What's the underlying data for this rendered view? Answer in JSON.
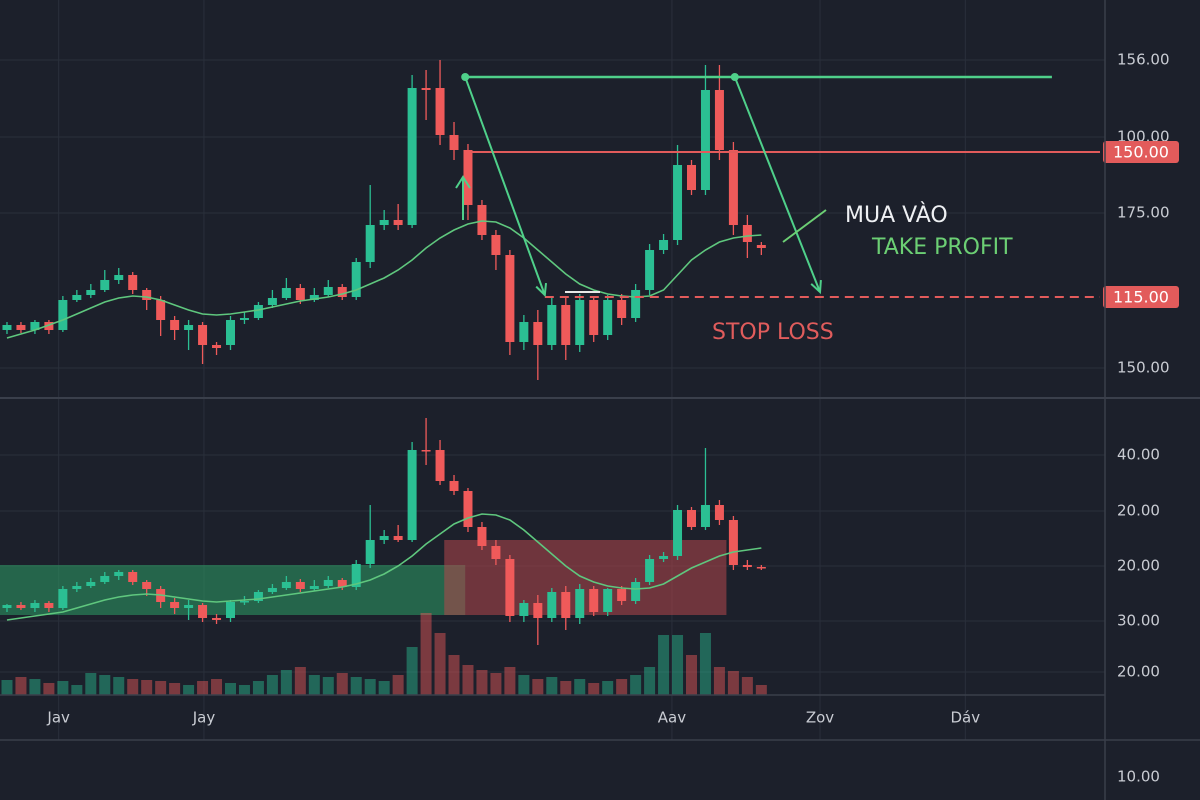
{
  "chart_data": [
    {
      "type": "candlestick",
      "xlim": [
        -0.5,
        78.6
      ],
      "ylim": [
        5,
        380
      ],
      "xticks": [
        {
          "value": 3.7,
          "label": "Jav"
        },
        {
          "value": 14.1,
          "label": "Jay"
        },
        {
          "value": 47.6,
          "label": "Aav"
        },
        {
          "value": 58.2,
          "label": "Zov"
        },
        {
          "value": 68.6,
          "label": "Dáv"
        }
      ],
      "y_labels": [
        "156.00",
        "100.00",
        "175.00",
        "150.00"
      ],
      "up_color": "#2bbf93",
      "down_color": "#ef5a5a",
      "ma_color": "#5fc77e",
      "candles": [
        [
          70,
          78,
          66,
          75
        ],
        [
          75,
          78,
          67,
          70
        ],
        [
          70,
          80,
          66,
          78
        ],
        [
          78,
          80,
          66,
          70
        ],
        [
          70,
          104,
          68,
          100
        ],
        [
          100,
          110,
          98,
          105
        ],
        [
          105,
          116,
          102,
          110
        ],
        [
          110,
          130,
          108,
          120
        ],
        [
          120,
          132,
          116,
          125
        ],
        [
          125,
          128,
          106,
          110
        ],
        [
          110,
          112,
          90,
          100
        ],
        [
          100,
          104,
          64,
          80
        ],
        [
          80,
          84,
          60,
          70
        ],
        [
          70,
          80,
          50,
          75
        ],
        [
          75,
          78,
          36,
          55
        ],
        [
          55,
          58,
          45,
          52
        ],
        [
          55,
          84,
          50,
          80
        ],
        [
          80,
          88,
          76,
          82
        ],
        [
          82,
          98,
          80,
          95
        ],
        [
          95,
          110,
          92,
          102
        ],
        [
          102,
          122,
          100,
          112
        ],
        [
          112,
          116,
          96,
          100
        ],
        [
          100,
          112,
          98,
          105
        ],
        [
          105,
          120,
          103,
          113
        ],
        [
          113,
          116,
          100,
          103
        ],
        [
          103,
          142,
          100,
          138
        ],
        [
          138,
          215,
          132,
          175
        ],
        [
          175,
          190,
          170,
          180
        ],
        [
          180,
          196,
          170,
          175
        ],
        [
          175,
          325,
          172,
          312
        ],
        [
          312,
          330,
          280,
          310
        ],
        [
          312,
          340,
          255,
          265
        ],
        [
          265,
          278,
          240,
          250
        ],
        [
          250,
          256,
          180,
          195
        ],
        [
          195,
          200,
          160,
          165
        ],
        [
          165,
          170,
          130,
          145
        ],
        [
          145,
          150,
          45,
          58
        ],
        [
          58,
          85,
          50,
          78
        ],
        [
          78,
          90,
          20,
          55
        ],
        [
          55,
          102,
          50,
          95
        ],
        [
          95,
          104,
          40,
          55
        ],
        [
          55,
          106,
          48,
          100
        ],
        [
          100,
          104,
          58,
          65
        ],
        [
          65,
          105,
          60,
          100
        ],
        [
          100,
          106,
          75,
          82
        ],
        [
          82,
          116,
          78,
          110
        ],
        [
          110,
          156,
          105,
          150
        ],
        [
          150,
          166,
          146,
          160
        ],
        [
          160,
          255,
          155,
          235
        ],
        [
          235,
          240,
          205,
          210
        ],
        [
          210,
          335,
          205,
          310
        ],
        [
          310,
          335,
          240,
          250
        ],
        [
          250,
          258,
          165,
          175
        ],
        [
          175,
          185,
          142,
          158
        ],
        [
          155,
          158,
          145,
          152
        ]
      ],
      "ma": [
        62,
        66,
        70,
        75,
        80,
        86,
        92,
        98,
        102,
        104,
        103,
        100,
        95,
        90,
        86,
        85,
        86,
        88,
        90,
        93,
        96,
        99,
        101,
        103,
        106,
        110,
        116,
        122,
        130,
        140,
        152,
        162,
        170,
        176,
        179,
        178,
        172,
        162,
        150,
        138,
        126,
        116,
        110,
        106,
        104,
        103,
        104,
        110,
        125,
        140,
        150,
        158,
        162,
        164,
        165
      ],
      "levels": [
        {
          "tag": "150.00",
          "value": 248,
          "from": 33.2,
          "color": "#e25b5b",
          "dashed": false
        },
        {
          "tag": "115.00",
          "value": 103,
          "from": 38.5,
          "color": "#e25b5b",
          "dashed": true
        }
      ],
      "top_line": {
        "value": 323,
        "from": 32.8,
        "to": 74.8,
        "color": "#4fd08a"
      },
      "arrows": [
        [
          32.8,
          323,
          38.5,
          105
        ],
        [
          52.1,
          323,
          58.2,
          108
        ]
      ],
      "annotations": [
        "MUA VÀO",
        "TAKE PROFIT",
        "STOP LOSS"
      ]
    },
    {
      "type": "candlestick",
      "ylim": [
        5,
        300
      ],
      "y_labels": [
        "40.00",
        "20.00",
        "20.00",
        "30.00",
        "20.00"
      ],
      "candles": [
        [
          92,
          96,
          88,
          95
        ],
        [
          95,
          98,
          90,
          92
        ],
        [
          92,
          100,
          88,
          97
        ],
        [
          97,
          99,
          88,
          92
        ],
        [
          92,
          114,
          90,
          111
        ],
        [
          111,
          118,
          108,
          114
        ],
        [
          114,
          122,
          112,
          118
        ],
        [
          118,
          128,
          116,
          124
        ],
        [
          124,
          130,
          120,
          128
        ],
        [
          128,
          130,
          115,
          118
        ],
        [
          118,
          120,
          104,
          111
        ],
        [
          111,
          114,
          92,
          98
        ],
        [
          98,
          102,
          86,
          92
        ],
        [
          92,
          100,
          80,
          95
        ],
        [
          95,
          97,
          78,
          82
        ],
        [
          82,
          86,
          76,
          80
        ],
        [
          82,
          100,
          78,
          98
        ],
        [
          98,
          104,
          95,
          99
        ],
        [
          99,
          110,
          97,
          108
        ],
        [
          108,
          116,
          106,
          112
        ],
        [
          112,
          124,
          110,
          118
        ],
        [
          118,
          121,
          108,
          111
        ],
        [
          111,
          120,
          109,
          114
        ],
        [
          114,
          124,
          112,
          120
        ],
        [
          120,
          122,
          110,
          113
        ],
        [
          113,
          140,
          110,
          136
        ],
        [
          136,
          195,
          132,
          160
        ],
        [
          160,
          170,
          156,
          164
        ],
        [
          164,
          175,
          158,
          160
        ],
        [
          160,
          258,
          158,
          250
        ],
        [
          250,
          282,
          235,
          249
        ],
        [
          250,
          260,
          215,
          219
        ],
        [
          219,
          225,
          205,
          209
        ],
        [
          209,
          212,
          168,
          173
        ],
        [
          173,
          178,
          150,
          154
        ],
        [
          154,
          160,
          135,
          141
        ],
        [
          141,
          145,
          78,
          84
        ],
        [
          84,
          100,
          78,
          97
        ],
        [
          97,
          105,
          55,
          82
        ],
        [
          82,
          112,
          78,
          108
        ],
        [
          108,
          114,
          70,
          82
        ],
        [
          82,
          116,
          76,
          111
        ],
        [
          111,
          114,
          84,
          88
        ],
        [
          88,
          112,
          84,
          111
        ],
        [
          111,
          114,
          95,
          99
        ],
        [
          99,
          122,
          96,
          118
        ],
        [
          118,
          145,
          115,
          141
        ],
        [
          141,
          148,
          138,
          144
        ],
        [
          144,
          195,
          140,
          190
        ],
        [
          190,
          193,
          170,
          173
        ],
        [
          173,
          252,
          170,
          195
        ],
        [
          195,
          200,
          175,
          180
        ],
        [
          180,
          184,
          130,
          135
        ],
        [
          135,
          140,
          130,
          133
        ],
        [
          133,
          135,
          130,
          132
        ]
      ],
      "ma": [
        80,
        82,
        84,
        86,
        88,
        92,
        96,
        100,
        103,
        105,
        106,
        105,
        103,
        101,
        99,
        98,
        99,
        100,
        101,
        103,
        105,
        107,
        109,
        111,
        113,
        116,
        120,
        126,
        134,
        144,
        156,
        166,
        176,
        182,
        186,
        185,
        180,
        170,
        158,
        146,
        134,
        124,
        118,
        114,
        112,
        111,
        112,
        116,
        124,
        132,
        138,
        144,
        148,
        150,
        152
      ],
      "volume": [
        15,
        18,
        16,
        12,
        14,
        10,
        22,
        20,
        18,
        16,
        15,
        14,
        12,
        10,
        14,
        16,
        12,
        10,
        14,
        20,
        25,
        28,
        20,
        18,
        22,
        18,
        16,
        14,
        20,
        48,
        82,
        62,
        40,
        30,
        25,
        22,
        28,
        20,
        16,
        18,
        14,
        16,
        12,
        14,
        16,
        20,
        28,
        60,
        60,
        40,
        62,
        28,
        24,
        18,
        10
      ],
      "zones": [
        {
          "from": -0.6,
          "to": 32.8,
          "low": 85,
          "high": 135,
          "color": "#2e9e66"
        },
        {
          "from": 31.3,
          "to": 51.5,
          "low": 85,
          "high": 160,
          "color": "#b5474d"
        }
      ]
    }
  ],
  "lower_axis_label": "10.00"
}
